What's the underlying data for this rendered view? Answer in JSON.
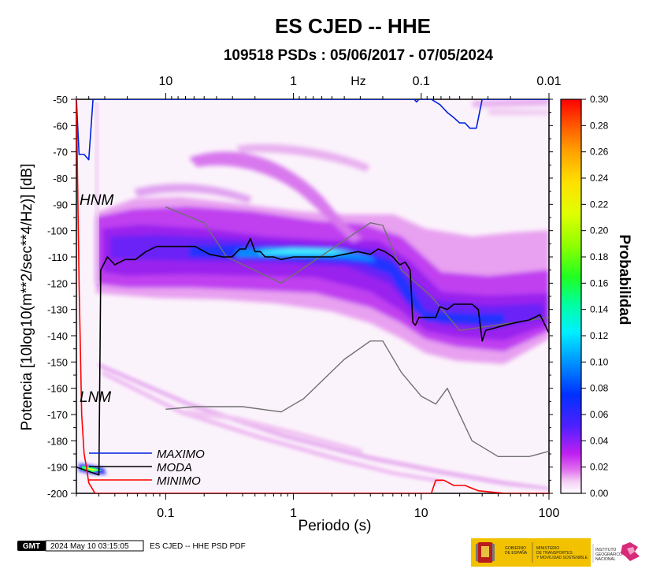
{
  "chart_data": {
    "type": "heatmap",
    "title": "ES CJED -- HHE",
    "subtitle": "109518 PSDs : 05/06/2017 - 07/05/2024",
    "xlabel": "Periodo (s)",
    "ylabel": "Potencia [10log10(m**2/sec**4/Hz)] [dB]",
    "x_scale": "log",
    "xlim": [
      0.02,
      100
    ],
    "ylim": [
      -200,
      -50
    ],
    "x_ticks": [
      0.1,
      1,
      10,
      100
    ],
    "x_tick_labels": [
      "0.1",
      "1",
      "10",
      "100"
    ],
    "y_ticks": [
      -200,
      -190,
      -180,
      -170,
      -160,
      -150,
      -140,
      -130,
      -120,
      -110,
      -100,
      -90,
      -80,
      -70,
      -60,
      -50
    ],
    "y_tick_labels": [
      "-200",
      "-190",
      "-180",
      "-170",
      "-160",
      "-150",
      "-140",
      "-130",
      "-120",
      "-110",
      "-100",
      "-90",
      "-80",
      "-70",
      "-60",
      "-50"
    ],
    "top_axis": {
      "label": "Hz",
      "ticks": [
        10,
        1,
        0.1,
        0.01
      ],
      "tick_labels": [
        "10",
        "1",
        "0.1",
        "0.01"
      ]
    },
    "colorbar": {
      "label": "Probabilidad",
      "range": [
        0.0,
        0.3
      ],
      "ticks": [
        0.0,
        0.02,
        0.04,
        0.06,
        0.08,
        0.1,
        0.12,
        0.14,
        0.16,
        0.18,
        0.2,
        0.22,
        0.24,
        0.26,
        0.28,
        0.3
      ],
      "tick_labels": [
        "0.00",
        "0.02",
        "0.04",
        "0.06",
        "0.08",
        "0.10",
        "0.12",
        "0.14",
        "0.16",
        "0.18",
        "0.20",
        "0.22",
        "0.24",
        "0.26",
        "0.28",
        "0.30"
      ],
      "colors": [
        "#ffffff",
        "#f2c8f2",
        "#d030e8",
        "#8a1ef2",
        "#3020ff",
        "#0048ff",
        "#00b4ff",
        "#00ffff",
        "#00ff90",
        "#40ff00",
        "#c8ff00",
        "#ffff00",
        "#ffc000",
        "#ff7000",
        "#ff2000",
        "#ff0000"
      ]
    },
    "models": [
      {
        "name": "HNM",
        "color": "#707070",
        "points": [
          [
            0.1,
            -91
          ],
          [
            0.2,
            -97
          ],
          [
            0.3,
            -110
          ],
          [
            0.8,
            -120
          ],
          [
            4,
            -97
          ],
          [
            5,
            -98
          ],
          [
            7,
            -115
          ],
          [
            12,
            -125
          ],
          [
            20,
            -138
          ],
          [
            100,
            -133
          ]
        ]
      },
      {
        "name": "LNM",
        "color": "#707070",
        "points": [
          [
            0.1,
            -168
          ],
          [
            0.17,
            -167
          ],
          [
            0.4,
            -167
          ],
          [
            0.8,
            -169
          ],
          [
            1.2,
            -164
          ],
          [
            2.5,
            -149
          ],
          [
            4,
            -142
          ],
          [
            5,
            -142
          ],
          [
            7,
            -154
          ],
          [
            10,
            -163
          ],
          [
            13,
            -166
          ],
          [
            16,
            -160
          ],
          [
            25,
            -180
          ],
          [
            40,
            -186
          ],
          [
            70,
            -186
          ],
          [
            100,
            -184
          ]
        ]
      }
    ],
    "series": [
      {
        "name": "MAXIMO",
        "color": "#0020e0",
        "points": [
          [
            0.02,
            -50
          ],
          [
            0.021,
            -71
          ],
          [
            0.023,
            -71
          ],
          [
            0.025,
            -73
          ],
          [
            0.027,
            -50
          ],
          [
            8.8,
            -50
          ],
          [
            9.2,
            -51
          ],
          [
            9.6,
            -50
          ],
          [
            12,
            -50
          ],
          [
            14,
            -52
          ],
          [
            16,
            -55
          ],
          [
            18,
            -57
          ],
          [
            20,
            -59
          ],
          [
            22,
            -59
          ],
          [
            24,
            -61
          ],
          [
            27,
            -61
          ],
          [
            30,
            -50
          ],
          [
            100,
            -50
          ]
        ]
      },
      {
        "name": "MODA",
        "color": "#000000",
        "points": [
          [
            0.02,
            -190
          ],
          [
            0.03,
            -193
          ],
          [
            0.031,
            -115
          ],
          [
            0.035,
            -110
          ],
          [
            0.04,
            -113
          ],
          [
            0.048,
            -111
          ],
          [
            0.058,
            -111
          ],
          [
            0.07,
            -108
          ],
          [
            0.085,
            -106
          ],
          [
            0.12,
            -106
          ],
          [
            0.17,
            -106
          ],
          [
            0.22,
            -109
          ],
          [
            0.28,
            -110
          ],
          [
            0.33,
            -110
          ],
          [
            0.38,
            -107
          ],
          [
            0.42,
            -107
          ],
          [
            0.46,
            -103
          ],
          [
            0.5,
            -108
          ],
          [
            0.55,
            -108
          ],
          [
            0.6,
            -110
          ],
          [
            0.7,
            -110
          ],
          [
            0.8,
            -111
          ],
          [
            1.0,
            -110
          ],
          [
            1.3,
            -110
          ],
          [
            1.6,
            -110
          ],
          [
            2.0,
            -110
          ],
          [
            2.5,
            -109
          ],
          [
            3.2,
            -108
          ],
          [
            4.0,
            -109
          ],
          [
            4.6,
            -107
          ],
          [
            5.2,
            -108
          ],
          [
            6.0,
            -110
          ],
          [
            6.8,
            -113
          ],
          [
            7.5,
            -112
          ],
          [
            8.2,
            -115
          ],
          [
            8.6,
            -135
          ],
          [
            9.0,
            -136
          ],
          [
            9.6,
            -133
          ],
          [
            11,
            -133
          ],
          [
            13,
            -133
          ],
          [
            14,
            -129
          ],
          [
            16,
            -130
          ],
          [
            18,
            -128
          ],
          [
            22,
            -128
          ],
          [
            25,
            -128
          ],
          [
            28,
            -130
          ],
          [
            30,
            -142
          ],
          [
            32,
            -138
          ],
          [
            38,
            -137
          ],
          [
            45,
            -136
          ],
          [
            55,
            -135
          ],
          [
            70,
            -134
          ],
          [
            85,
            -132
          ],
          [
            100,
            -139
          ]
        ]
      },
      {
        "name": "MINIMO",
        "color": "#ff0000",
        "points": [
          [
            0.02,
            -50
          ],
          [
            0.021,
            -120
          ],
          [
            0.022,
            -170
          ],
          [
            0.023,
            -185
          ],
          [
            0.024,
            -190
          ],
          [
            0.025,
            -196
          ],
          [
            0.028,
            -200
          ],
          [
            0.09,
            -200
          ],
          [
            0.5,
            -200
          ],
          [
            5,
            -200
          ],
          [
            12,
            -200
          ],
          [
            13,
            -195
          ],
          [
            15,
            -195
          ],
          [
            18,
            -197
          ],
          [
            22,
            -197
          ],
          [
            28,
            -199
          ],
          [
            45,
            -200
          ],
          [
            100,
            -200
          ]
        ]
      }
    ],
    "legend": {
      "placement": "bottom-left",
      "items": [
        "MAXIMO",
        "MODA",
        "MINIMO"
      ]
    }
  },
  "footer": {
    "logo_text": "GMT",
    "timestamp": "2024 May 10 03:15:05",
    "caption": "ES CJED -- HHE PSD PDF",
    "org1_line1": "GOBIERNO",
    "org1_line2": "DE ESPAÑA",
    "org2_line1": "MINISTERIO",
    "org2_line2": "DE TRANSPORTES",
    "org2_line3": "Y MOVILIDAD SOSTENIBLE",
    "org3_line1": "INSTITUTO",
    "org3_line2": "GEOGRÁFICO",
    "org3_line3": "NACIONAL"
  }
}
